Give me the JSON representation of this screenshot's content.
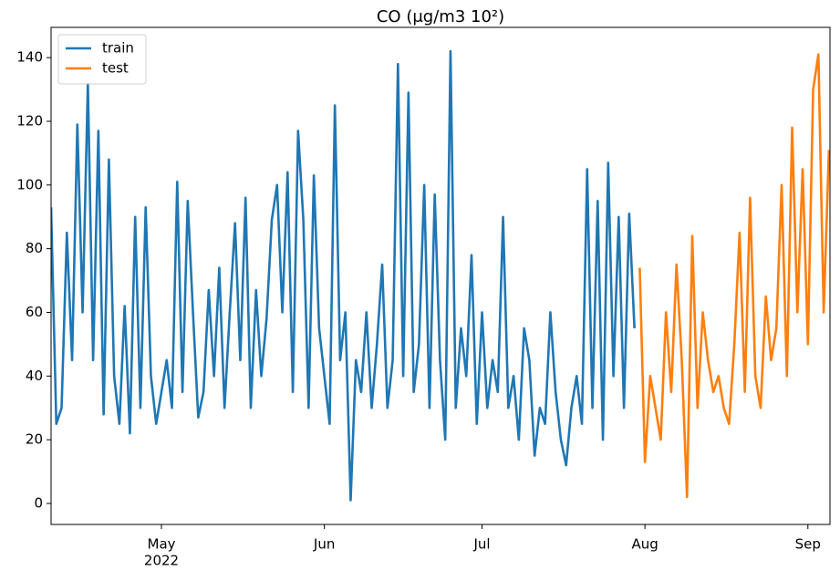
{
  "chart_data": {
    "type": "line",
    "title": "CO (μg/m3 10²)",
    "xlim": [
      100,
      248.2
    ],
    "ylim": [
      -6.6,
      149.5
    ],
    "xticks": [
      {
        "value": 121,
        "label": "May"
      },
      {
        "value": 152,
        "label": "Jun"
      },
      {
        "value": 182,
        "label": "Jul"
      },
      {
        "value": 213,
        "label": "Aug"
      },
      {
        "value": 244,
        "label": "Sep"
      }
    ],
    "xtick_sublabel": "2022",
    "yticks": [
      0,
      20,
      40,
      60,
      80,
      100,
      120,
      140
    ],
    "legend": "upper left",
    "grid": false,
    "series": [
      {
        "name": "train",
        "color": "#1f77b4",
        "x": [
          100,
          101,
          102,
          103,
          104,
          105,
          106,
          107,
          108,
          109,
          110,
          111,
          112,
          113,
          114,
          115,
          116,
          117,
          118,
          119,
          120,
          121,
          122,
          123,
          124,
          125,
          126,
          127,
          128,
          129,
          130,
          131,
          132,
          133,
          134,
          135,
          136,
          137,
          138,
          139,
          140,
          141,
          142,
          143,
          144,
          145,
          146,
          147,
          148,
          149,
          150,
          151,
          152,
          153,
          154,
          155,
          156,
          157,
          158,
          159,
          160,
          161,
          162,
          163,
          164,
          165,
          166,
          167,
          168,
          169,
          170,
          171,
          172,
          173,
          174,
          175,
          176,
          177,
          178,
          179,
          180,
          181,
          182,
          183,
          184,
          185,
          186,
          187,
          188,
          189,
          190,
          191,
          192,
          193,
          194,
          195,
          196,
          197,
          198,
          199,
          200,
          201,
          202,
          203,
          204,
          205,
          206,
          207,
          208,
          209,
          210,
          211
        ],
        "values": [
          93,
          25,
          30,
          85,
          45,
          119,
          60,
          132,
          45,
          117,
          28,
          108,
          40,
          25,
          62,
          22,
          90,
          30,
          93,
          40,
          25,
          35,
          45,
          30,
          101,
          35,
          95,
          60,
          27,
          35,
          67,
          40,
          74,
          30,
          60,
          88,
          45,
          96,
          30,
          67,
          40,
          58,
          89,
          100,
          60,
          104,
          35,
          117,
          89,
          30,
          103,
          55,
          40,
          25,
          125,
          45,
          60,
          1,
          45,
          35,
          60,
          30,
          50,
          75,
          30,
          45,
          138,
          40,
          129,
          35,
          50,
          100,
          30,
          97,
          45,
          20,
          142,
          30,
          55,
          40,
          78,
          25,
          60,
          30,
          45,
          35,
          90,
          30,
          40,
          20,
          55,
          45,
          15,
          30,
          25,
          60,
          35,
          20,
          12,
          30,
          40,
          25,
          105,
          30,
          95,
          20,
          107,
          40,
          90,
          30,
          91,
          55
        ]
      },
      {
        "name": "test",
        "color": "#ff7f0e",
        "x": [
          212,
          213,
          214,
          215,
          216,
          217,
          218,
          219,
          220,
          221,
          222,
          223,
          224,
          225,
          226,
          227,
          228,
          229,
          230,
          231,
          232,
          233,
          234,
          235,
          236,
          237,
          238,
          239,
          240,
          241,
          242,
          243,
          244,
          245,
          246,
          247,
          248
        ],
        "values": [
          74,
          13,
          40,
          30,
          20,
          60,
          35,
          75,
          45,
          2,
          84,
          30,
          60,
          45,
          35,
          40,
          30,
          25,
          50,
          85,
          35,
          96,
          40,
          30,
          65,
          45,
          55,
          100,
          40,
          118,
          60,
          105,
          50,
          130,
          141,
          60,
          111
        ]
      }
    ]
  }
}
